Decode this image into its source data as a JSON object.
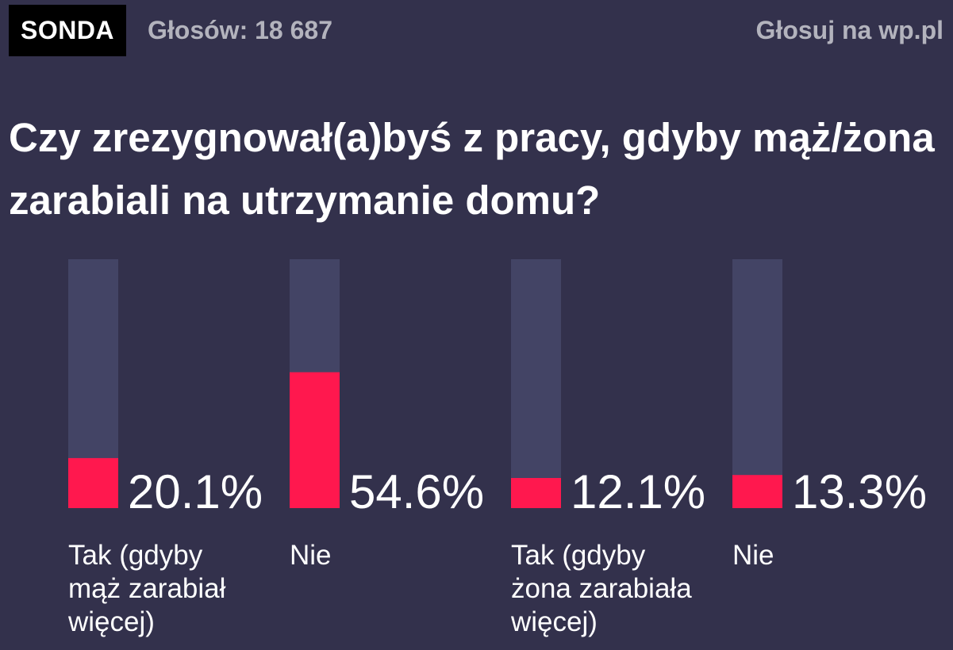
{
  "header": {
    "badge": "SONDA",
    "votes": "Głosów: 18 687",
    "cta": "Głosuj na wp.pl"
  },
  "colors": {
    "background": "#33314c",
    "track": "#434465",
    "fill": "#ff184e",
    "text": "#ffffff",
    "muted": "#b3b3bd"
  },
  "chart_data": {
    "type": "bar",
    "title": "Czy zrezygnował(a)byś z pracy, gdyby mąż/żona zarabiali na utrzymanie domu?",
    "categories": [
      "Tak (gdyby mąż zarabiał więcej)",
      "Nie",
      "Tak (gdyby żona zarabiała więcej)",
      "Nie"
    ],
    "values": [
      20.1,
      54.6,
      12.1,
      13.3
    ],
    "value_labels": [
      "20.1%",
      "54.6%",
      "12.1%",
      "13.3%"
    ],
    "ylim": [
      0,
      100
    ],
    "grid": false,
    "legend": "none"
  }
}
